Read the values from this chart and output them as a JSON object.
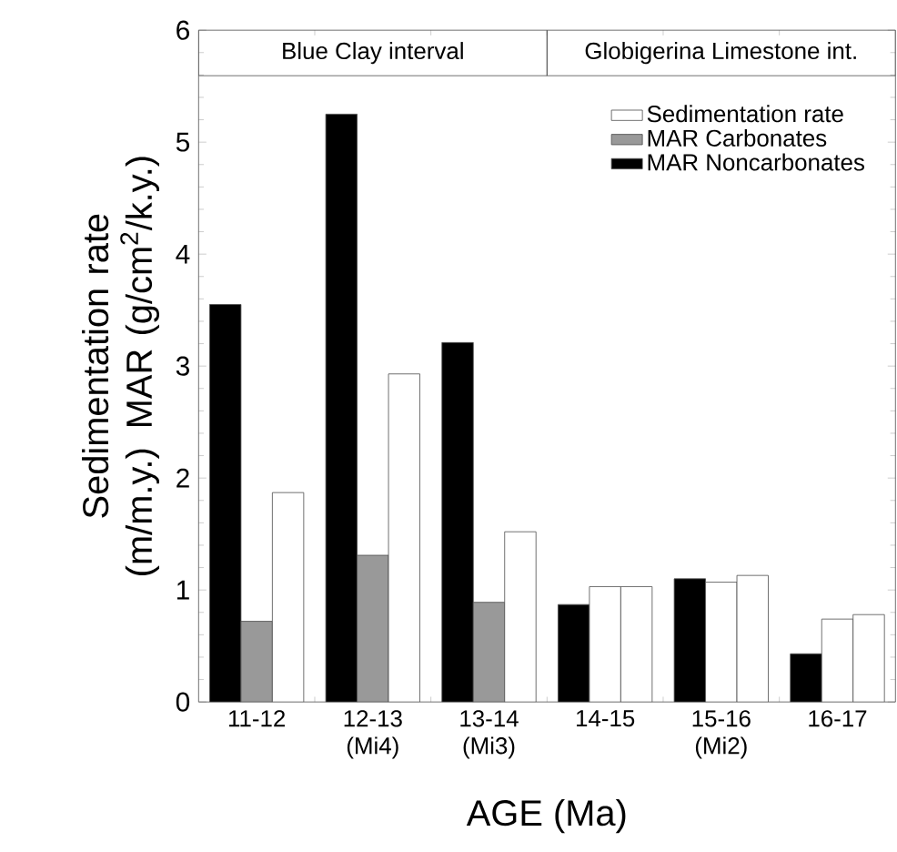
{
  "chart_data": {
    "type": "bar",
    "xlabel": "AGE (Ma)",
    "ylabel": "Sedimentation rate (m/m.y.) MAR (g/cm$^{2}$/k.y.)",
    "categories": [
      "11-12",
      "12-13 (Mi4)",
      "13-14 (Mi3)",
      "14-15",
      "15-16 (Mi2)",
      "16-17"
    ],
    "series": [
      {
        "name": "MAR Noncarbonates",
        "color": "#000000",
        "values": [
          3.55,
          5.25,
          3.21,
          0.87,
          1.1,
          0.43
        ]
      },
      {
        "name": "MAR Carbonates",
        "color": "#999999",
        "colors": [
          "#999999",
          "#999999",
          "#999999",
          "#ffffff",
          "#ffffff",
          "#ffffff"
        ],
        "values": [
          0.72,
          1.31,
          0.89,
          1.03,
          1.07,
          0.74
        ]
      },
      {
        "name": "Sedimentation rate",
        "color": "#ffffff",
        "values": [
          1.87,
          2.93,
          1.52,
          1.03,
          1.13,
          0.78
        ]
      }
    ],
    "ylim": [
      0,
      6
    ],
    "yticks": [
      0,
      1,
      2,
      3,
      4,
      5,
      6
    ],
    "legend": "top right",
    "annotations": [
      "Blue Clay interval",
      "Globigerina Limestone int."
    ]
  }
}
